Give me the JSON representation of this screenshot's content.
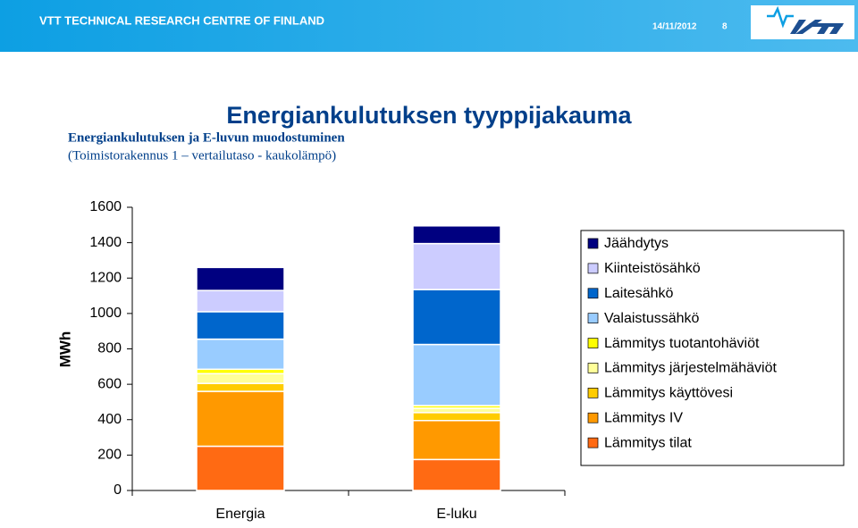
{
  "header": {
    "organization": "VTT TECHNICAL RESEARCH CENTRE OF FINLAND",
    "date": "14/11/2012",
    "page": "8"
  },
  "title": "Energiankulutuksen tyyppijakauma",
  "subtitle": [
    "Energiankulutuksen ja E-luvun muodostuminen",
    "(Toimistorakennus 1 – vertailutaso - kaukolämpö)"
  ],
  "chart_data": {
    "type": "stacked-bar",
    "y_label": "MWh",
    "categories": [
      "Energia",
      "E-luku"
    ],
    "ylim": [
      0,
      1600
    ],
    "yticks": [
      0,
      200,
      400,
      600,
      800,
      1000,
      1200,
      1400,
      1600
    ],
    "legend": "right",
    "series": [
      {
        "name": "Lämmitys tilat",
        "color": "#ff6a13",
        "values": [
          250,
          175
        ]
      },
      {
        "name": "Lämmitys IV",
        "color": "#ff9900",
        "values": [
          310,
          220
        ]
      },
      {
        "name": "Lämmitys käyttövesi",
        "color": "#ffcc00",
        "values": [
          45,
          45
        ]
      },
      {
        "name": "Lämmitys järjestelmähäviöt",
        "color": "#ffff99",
        "values": [
          55,
          25
        ]
      },
      {
        "name": "Lämmitys tuotantohäviöt",
        "color": "#ffff00",
        "values": [
          25,
          15
        ]
      },
      {
        "name": "Valaistussähkö",
        "color": "#99ccff",
        "values": [
          170,
          345
        ]
      },
      {
        "name": "Laitesähkö",
        "color": "#0066cc",
        "values": [
          155,
          310
        ]
      },
      {
        "name": "Kiinteistösähkö",
        "color": "#ccccff",
        "values": [
          120,
          260
        ]
      },
      {
        "name": "Jäähdytys",
        "color": "#000080",
        "values": [
          130,
          100
        ]
      }
    ]
  }
}
